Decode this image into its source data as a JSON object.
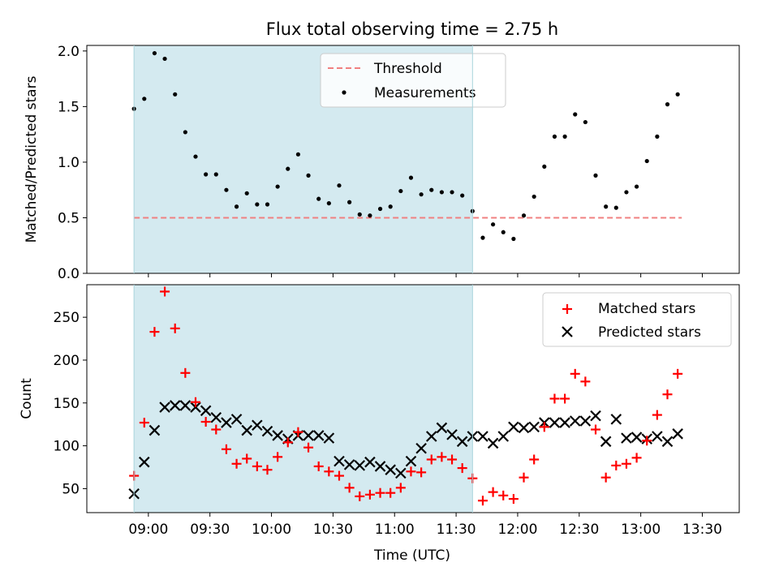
{
  "title": "Flux total observing time = 2.75 h",
  "xlabel": "Time (UTC)",
  "x_ticks": [
    "09:00",
    "09:30",
    "10:00",
    "10:30",
    "11:00",
    "11:30",
    "12:00",
    "12:30",
    "13:00",
    "13:30"
  ],
  "shaded_region": {
    "start": "08:53",
    "end": "11:38",
    "color": "#d4eaf0"
  },
  "chart_data": [
    {
      "type": "scatter",
      "panel": "top",
      "ylabel": "Matched/Predicted stars",
      "ylim": [
        0,
        2.05
      ],
      "y_ticks": [
        "0.0",
        "0.5",
        "1.0",
        "1.5",
        "2.0"
      ],
      "legend": {
        "placement": "top-center",
        "entries": [
          "Threshold",
          "Measurements"
        ]
      },
      "threshold": {
        "name": "Threshold",
        "value": 0.5,
        "x": [
          "08:53",
          "13:20"
        ],
        "color": "#f08080",
        "style": "dashed"
      },
      "series": [
        {
          "name": "Measurements",
          "marker": "dot",
          "color": "#000000",
          "x": [
            "08:53",
            "08:58",
            "09:03",
            "09:08",
            "09:13",
            "09:18",
            "09:23",
            "09:28",
            "09:33",
            "09:38",
            "09:43",
            "09:48",
            "09:53",
            "09:58",
            "10:03",
            "10:08",
            "10:13",
            "10:18",
            "10:23",
            "10:28",
            "10:33",
            "10:38",
            "10:43",
            "10:48",
            "10:53",
            "10:58",
            "11:03",
            "11:08",
            "11:13",
            "11:18",
            "11:23",
            "11:28",
            "11:33",
            "11:38",
            "11:43",
            "11:48",
            "11:53",
            "11:58",
            "12:03",
            "12:08",
            "12:13",
            "12:18",
            "12:23",
            "12:28",
            "12:33",
            "12:38",
            "12:43",
            "12:48",
            "12:53",
            "12:58",
            "13:03",
            "13:08",
            "13:13",
            "13:18"
          ],
          "y": [
            1.48,
            1.57,
            1.98,
            1.93,
            1.61,
            1.27,
            1.05,
            0.89,
            0.89,
            0.75,
            0.6,
            0.72,
            0.62,
            0.62,
            0.78,
            0.94,
            1.07,
            0.88,
            0.67,
            0.63,
            0.79,
            0.64,
            0.53,
            0.52,
            0.58,
            0.6,
            0.74,
            0.86,
            0.71,
            0.75,
            0.73,
            0.73,
            0.7,
            0.56,
            0.32,
            0.44,
            0.37,
            0.31,
            0.52,
            0.69,
            0.96,
            1.23,
            1.23,
            1.43,
            1.36,
            0.88,
            0.6,
            0.59,
            0.73,
            0.78,
            1.01,
            1.23,
            1.52,
            1.61
          ]
        }
      ]
    },
    {
      "type": "scatter",
      "panel": "bottom",
      "ylabel": "Count",
      "ylim": [
        22,
        288
      ],
      "y_ticks": [
        "50",
        "100",
        "150",
        "200",
        "250"
      ],
      "legend": {
        "placement": "top-right",
        "entries": [
          "Matched stars",
          "Predicted stars"
        ]
      },
      "series": [
        {
          "name": "Matched stars",
          "marker": "+",
          "color": "#ff0000",
          "x": [
            "08:53",
            "08:58",
            "09:03",
            "09:08",
            "09:13",
            "09:18",
            "09:23",
            "09:28",
            "09:33",
            "09:38",
            "09:43",
            "09:48",
            "09:53",
            "09:58",
            "10:03",
            "10:08",
            "10:13",
            "10:18",
            "10:23",
            "10:28",
            "10:33",
            "10:38",
            "10:43",
            "10:48",
            "10:53",
            "10:58",
            "11:03",
            "11:08",
            "11:13",
            "11:18",
            "11:23",
            "11:28",
            "11:33",
            "11:38",
            "11:43",
            "11:48",
            "11:53",
            "11:58",
            "12:03",
            "12:08",
            "12:13",
            "12:18",
            "12:23",
            "12:28",
            "12:33",
            "12:38",
            "12:43",
            "12:48",
            "12:53",
            "12:58",
            "13:03",
            "13:08",
            "13:13",
            "13:18"
          ],
          "y": [
            65,
            127,
            233,
            280,
            237,
            185,
            151,
            128,
            119,
            96,
            79,
            85,
            76,
            72,
            87,
            104,
            116,
            98,
            76,
            70,
            65,
            51,
            41,
            43,
            45,
            45,
            51,
            70,
            69,
            84,
            87,
            84,
            74,
            62,
            36,
            46,
            42,
            38,
            63,
            84,
            122,
            155,
            155,
            184,
            175,
            119,
            63,
            77,
            79,
            86,
            106,
            136,
            160,
            184
          ]
        },
        {
          "name": "Predicted stars",
          "marker": "x",
          "color": "#000000",
          "x": [
            "08:53",
            "08:58",
            "09:03",
            "09:08",
            "09:13",
            "09:18",
            "09:23",
            "09:28",
            "09:33",
            "09:38",
            "09:43",
            "09:48",
            "09:53",
            "09:58",
            "10:03",
            "10:08",
            "10:13",
            "10:18",
            "10:23",
            "10:28",
            "10:33",
            "10:38",
            "10:43",
            "10:48",
            "10:53",
            "10:58",
            "11:03",
            "11:08",
            "11:13",
            "11:18",
            "11:23",
            "11:28",
            "11:33",
            "11:38",
            "11:43",
            "11:48",
            "11:53",
            "11:58",
            "12:03",
            "12:08",
            "12:13",
            "12:18",
            "12:23",
            "12:28",
            "12:33",
            "12:38",
            "12:43",
            "12:48",
            "12:53",
            "12:58",
            "13:03",
            "13:08",
            "13:13",
            "13:18"
          ],
          "y": [
            44,
            81,
            118,
            145,
            147,
            147,
            145,
            141,
            133,
            127,
            131,
            118,
            124,
            117,
            112,
            108,
            112,
            112,
            112,
            109,
            82,
            78,
            77,
            81,
            76,
            72,
            68,
            82,
            97,
            111,
            121,
            113,
            105,
            111,
            111,
            103,
            111,
            122,
            121,
            122,
            127,
            127,
            127,
            129,
            129,
            135,
            105,
            131,
            109,
            110,
            108,
            111,
            105,
            114
          ]
        }
      ]
    }
  ]
}
